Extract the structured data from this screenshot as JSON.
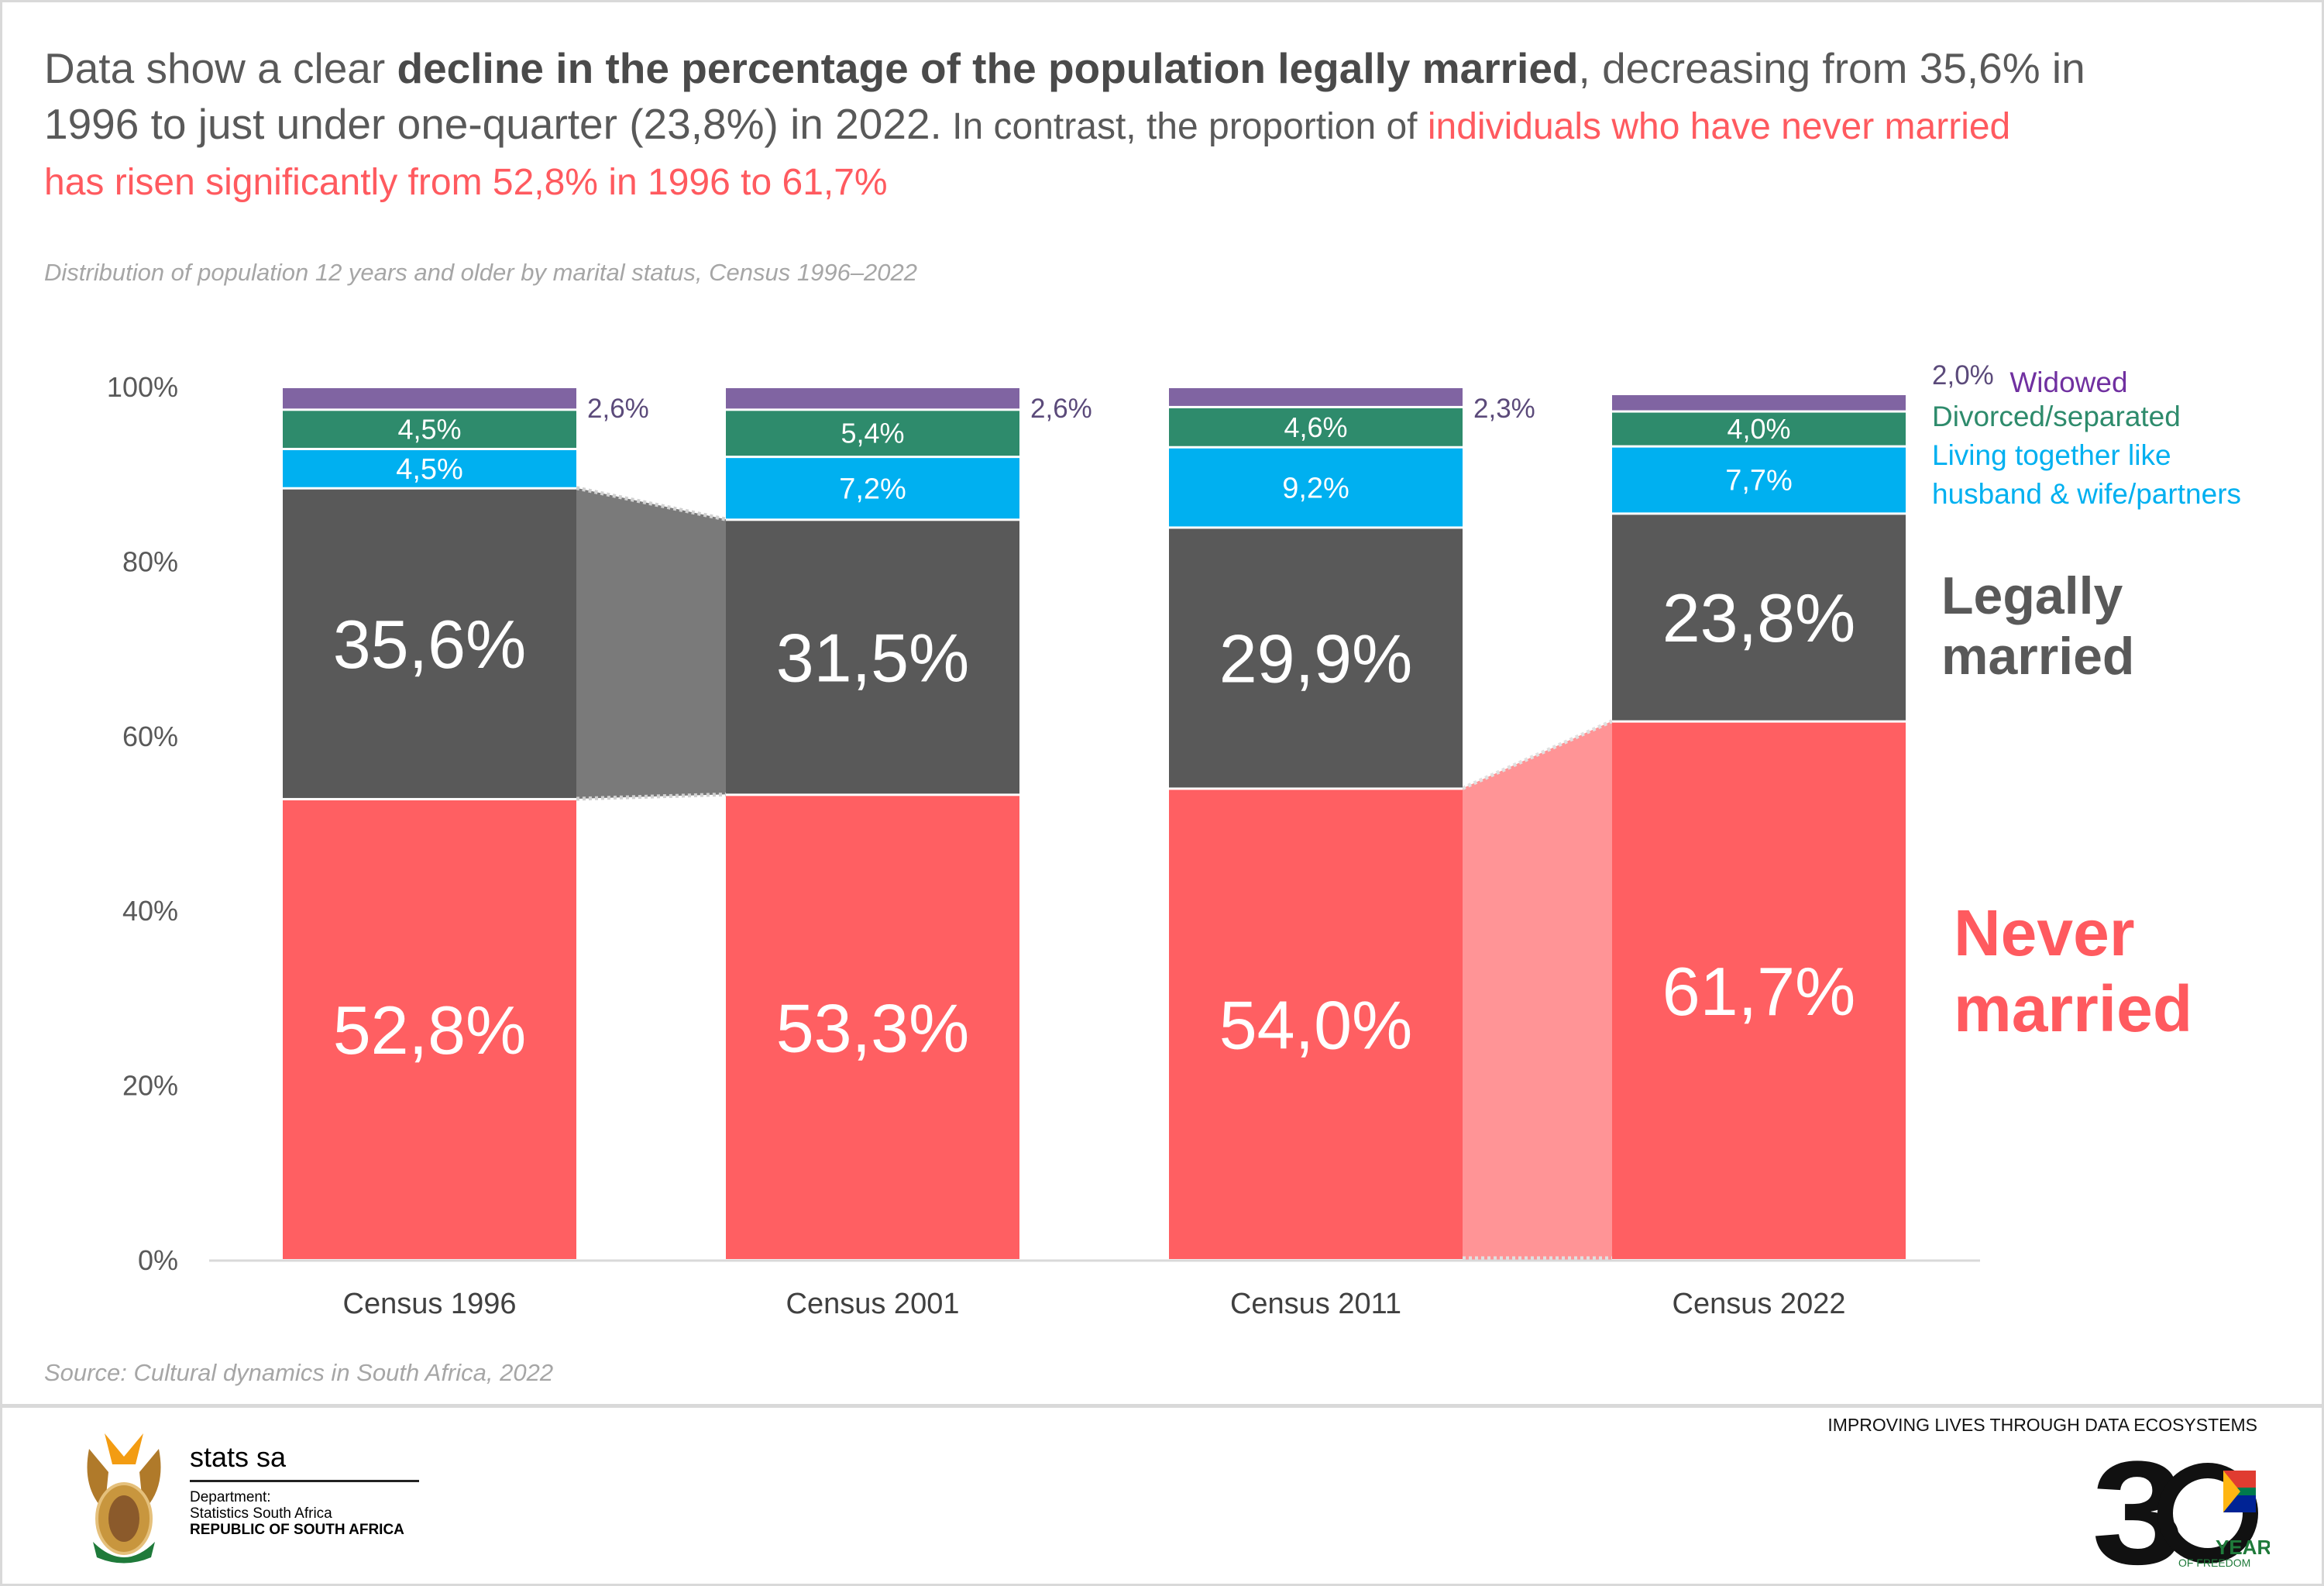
{
  "headline": {
    "part1": "Data show a clear ",
    "bold": "decline in the percentage of the population legally married",
    "part2": ", decreasing from 35,6% in",
    "part3": "1996 to just under one-quarter (23,8%) in 2022.",
    "part4": " In contrast, the proportion of ",
    "red1": "individuals who have never married",
    "red2": "has risen significantly from 52,8% in 1996 to 61,7%"
  },
  "subtitle": "Distribution of population 12 years and older by marital status, Census 1996–2022",
  "source": "Source:  Cultural dynamics in South Africa, 2022",
  "footer": {
    "tagline": "IMPROVING LIVES THROUGH DATA ECOSYSTEMS",
    "org_name": "stats sa",
    "dept_line1": "Department:",
    "dept_line2": "Statistics South Africa",
    "dept_line3": "REPUBLIC OF SOUTH AFRICA",
    "logo_30_years": "30 YEARS OF FREEDOM"
  },
  "chart_data": {
    "type": "bar",
    "stacked": true,
    "title": "Distribution of population 12 years and older by marital status, Census 1996–2022",
    "categories": [
      "Census 1996",
      "Census 2001",
      "Census 2011",
      "Census 2022"
    ],
    "ylim": [
      0,
      100
    ],
    "yticks": [
      "0%",
      "20%",
      "40%",
      "60%",
      "80%",
      "100%"
    ],
    "grid": false,
    "legend_placement": "right",
    "series": [
      {
        "name": "Never married",
        "values": [
          52.8,
          53.3,
          54.0,
          61.7
        ],
        "labels": [
          "52,8%",
          "53,3%",
          "54,0%",
          "61,7%"
        ],
        "color": "#FF5F62"
      },
      {
        "name": "Legally married",
        "values": [
          35.6,
          31.5,
          29.9,
          23.8
        ],
        "labels": [
          "35,6%",
          "31,5%",
          "29,9%",
          "23,8%"
        ],
        "color": "#595959"
      },
      {
        "name": "Living together like husband & wife/partners",
        "values": [
          4.5,
          7.2,
          9.2,
          7.7
        ],
        "labels": [
          "4,5%",
          "7,2%",
          "9,2%",
          "7,7%"
        ],
        "color": "#00B0F0"
      },
      {
        "name": "Divorced/separated",
        "values": [
          4.5,
          5.4,
          4.6,
          4.0
        ],
        "labels": [
          "4,5%",
          "5,4%",
          "4,6%",
          "4,0%"
        ],
        "color": "#2E8B6C"
      },
      {
        "name": "Widowed",
        "values": [
          2.6,
          2.6,
          2.3,
          2.0
        ],
        "labels": [
          "2,6%",
          "2,6%",
          "2,3%",
          "2,0%"
        ],
        "color": "#8064A2"
      }
    ],
    "legend": {
      "widowed": "Widowed",
      "divorced": "Divorced/separated",
      "living1": "Living together like",
      "living2": "husband & wife/partners",
      "legal1": "Legally",
      "legal2": "married",
      "never1": "Never",
      "never2": "married"
    },
    "legend_colors": {
      "widowed": "#7030A0",
      "divorced": "#2E8B6C",
      "living": "#00B0F0",
      "widowed_value": "#5B4A7A"
    }
  }
}
